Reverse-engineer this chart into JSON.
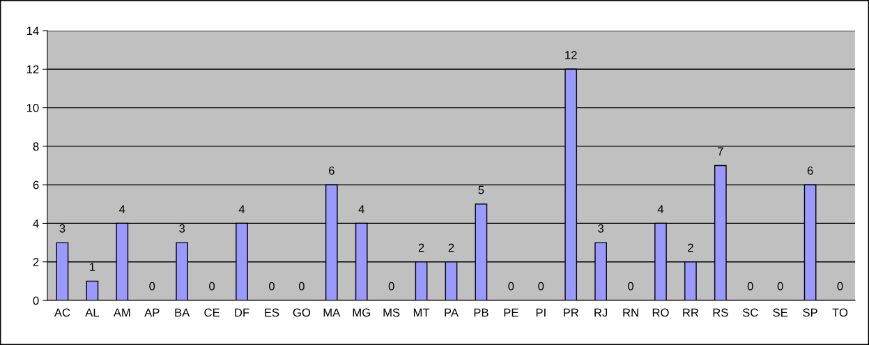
{
  "chart_data": {
    "type": "bar",
    "categories": [
      "AC",
      "AL",
      "AM",
      "AP",
      "BA",
      "CE",
      "DF",
      "ES",
      "GO",
      "MA",
      "MG",
      "MS",
      "MT",
      "PA",
      "PB",
      "PE",
      "PI",
      "PR",
      "RJ",
      "RN",
      "RO",
      "RR",
      "RS",
      "SC",
      "SE",
      "SP",
      "TO"
    ],
    "values": [
      3,
      1,
      4,
      0,
      3,
      0,
      4,
      0,
      0,
      6,
      4,
      0,
      2,
      2,
      5,
      0,
      0,
      12,
      3,
      0,
      4,
      2,
      7,
      0,
      0,
      6,
      0
    ],
    "color": "#9999ff",
    "ylim": [
      0,
      14
    ],
    "yticks": [
      0,
      2,
      4,
      6,
      8,
      10,
      12,
      14
    ],
    "grid": "y",
    "data_labels": true,
    "legend": false
  }
}
